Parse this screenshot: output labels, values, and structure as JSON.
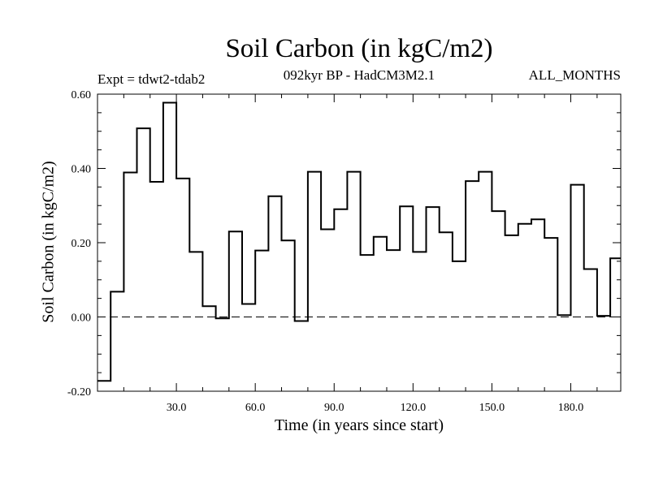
{
  "chart_data": {
    "type": "line",
    "style": "step",
    "title": "Soil Carbon (in kgC/m2)",
    "subtitle": "092kyr BP - HadCM3M2.1",
    "expt_label": "Expt = tdwt2-tdab2",
    "months_label": "ALL_MONTHS",
    "xlabel": "Time (in years since start)",
    "ylabel": "Soil Carbon (in kgC/m2)",
    "xlim": [
      0,
      199
    ],
    "ylim": [
      -0.2,
      0.6
    ],
    "xticks": [
      30.0,
      60.0,
      90.0,
      120.0,
      150.0,
      180.0
    ],
    "xtick_labels": [
      "30.0",
      "60.0",
      "90.0",
      "120.0",
      "150.0",
      "180.0"
    ],
    "yticks": [
      -0.2,
      0.0,
      0.2,
      0.4,
      0.6
    ],
    "ytick_labels": [
      "-0.20",
      "0.00",
      "0.20",
      "0.40",
      "0.60"
    ],
    "reference_line": {
      "y": 0.0,
      "style": "dashed"
    },
    "bin_width": 5,
    "series": [
      {
        "name": "tdwt2-tdab2",
        "x": [
          0,
          5,
          10,
          15,
          20,
          25,
          30,
          35,
          40,
          45,
          50,
          55,
          60,
          65,
          70,
          75,
          80,
          85,
          90,
          95,
          100,
          105,
          110,
          115,
          120,
          125,
          130,
          135,
          140,
          145,
          150,
          155,
          160,
          165,
          170,
          175,
          180,
          185,
          190,
          195
        ],
        "values": [
          -0.172,
          0.068,
          0.389,
          0.508,
          0.364,
          0.577,
          0.373,
          0.175,
          0.029,
          -0.004,
          0.23,
          0.035,
          0.179,
          0.325,
          0.206,
          -0.011,
          0.391,
          0.236,
          0.29,
          0.391,
          0.167,
          0.216,
          0.18,
          0.298,
          0.175,
          0.296,
          0.228,
          0.15,
          0.366,
          0.391,
          0.285,
          0.22,
          0.251,
          0.263,
          0.213,
          0.005,
          0.356,
          0.129,
          0.003,
          0.158
        ]
      }
    ]
  }
}
